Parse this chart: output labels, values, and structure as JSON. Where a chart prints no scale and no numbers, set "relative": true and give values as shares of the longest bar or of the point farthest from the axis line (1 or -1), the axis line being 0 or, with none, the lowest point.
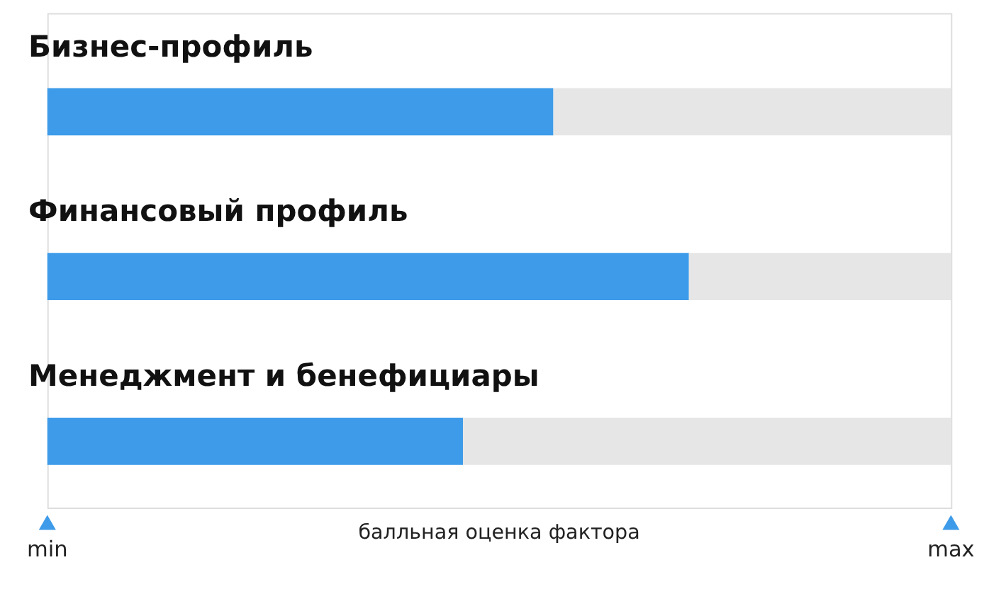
{
  "chart_data": {
    "type": "bar",
    "orientation": "horizontal",
    "relative": true,
    "stacked": true,
    "categories": [
      "Бизнес-профиль",
      "Финансовый профиль",
      "Менеджмент и бенефициары"
    ],
    "series": [
      {
        "color": "#3d9be9",
        "values": [
          0.56,
          0.71,
          0.46
        ]
      },
      {
        "color": "#e6e6e6",
        "values": [
          0.44,
          0.29,
          0.54
        ]
      }
    ],
    "xlabel": "балльная оценка фактора",
    "annotations": [
      "min",
      "max"
    ]
  }
}
